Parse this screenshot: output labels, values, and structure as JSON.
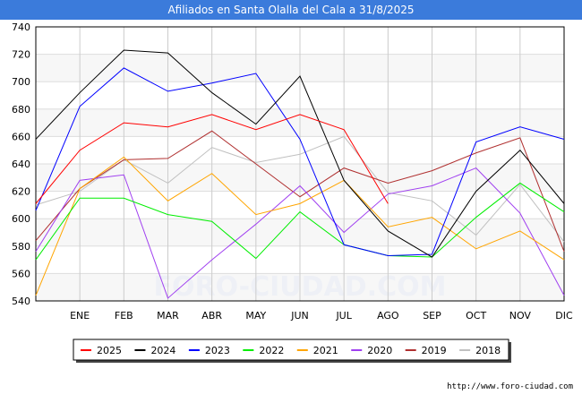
{
  "chart_data": {
    "type": "line",
    "title": "Afiliados en Santa Olalla del Cala a 31/8/2025",
    "categories": [
      "",
      "ENE",
      "FEB",
      "MAR",
      "ABR",
      "MAY",
      "JUN",
      "JUL",
      "AGO",
      "SEP",
      "OCT",
      "NOV",
      "DIC"
    ],
    "ylim": [
      540,
      740
    ],
    "yticks": [
      540,
      560,
      580,
      600,
      620,
      640,
      660,
      680,
      700,
      720,
      740
    ],
    "grid": true,
    "legend_position": "bottom",
    "series": [
      {
        "name": "2025",
        "color": "#ff0000",
        "values": [
          611,
          650,
          670,
          667,
          676,
          665,
          676,
          665,
          611,
          null,
          null,
          null,
          null
        ]
      },
      {
        "name": "2024",
        "color": "#000000",
        "values": [
          658,
          692,
          723,
          721,
          692,
          669,
          704,
          628,
          591,
          572,
          620,
          650,
          611
        ]
      },
      {
        "name": "2023",
        "color": "#0000ff",
        "values": [
          606,
          682,
          710,
          693,
          699,
          706,
          658,
          581,
          573,
          574,
          656,
          667,
          658
        ]
      },
      {
        "name": "2022",
        "color": "#00ee00",
        "values": [
          570,
          615,
          615,
          603,
          598,
          571,
          605,
          581,
          573,
          572,
          601,
          626,
          605
        ]
      },
      {
        "name": "2021",
        "color": "#ffa500",
        "values": [
          544,
          622,
          645,
          613,
          633,
          603,
          611,
          628,
          594,
          601,
          578,
          591,
          570
        ]
      },
      {
        "name": "2020",
        "color": "#a040f0",
        "values": [
          576,
          628,
          632,
          542,
          570,
          596,
          624,
          590,
          618,
          624,
          637,
          604,
          544
        ]
      },
      {
        "name": "2019",
        "color": "#b03030",
        "values": [
          584,
          622,
          643,
          644,
          664,
          640,
          616,
          637,
          626,
          635,
          648,
          659,
          576
        ]
      },
      {
        "name": "2018",
        "color": "#c0c0c0",
        "values": [
          610,
          620,
          643,
          626,
          652,
          641,
          647,
          660,
          619,
          613,
          588,
          625,
          583
        ]
      }
    ]
  },
  "watermark": "FORO-CIUDAD.COM",
  "footer_url": "http://www.foro-ciudad.com"
}
